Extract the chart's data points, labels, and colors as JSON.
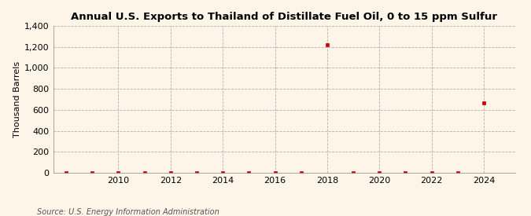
{
  "title": "Annual U.S. Exports to Thailand of Distillate Fuel Oil, 0 to 15 ppm Sulfur",
  "ylabel": "Thousand Barrels",
  "source": "Source: U.S. Energy Information Administration",
  "background_color": "#fdf6e8",
  "years": [
    2008,
    2009,
    2010,
    2011,
    2012,
    2013,
    2014,
    2015,
    2016,
    2017,
    2018,
    2019,
    2020,
    2021,
    2022,
    2023,
    2024
  ],
  "values": [
    0,
    0,
    0,
    0,
    0,
    0,
    0,
    0,
    0,
    0,
    1220,
    0,
    0,
    0,
    0,
    0,
    670
  ],
  "marker_color": "#cc0000",
  "ylim": [
    0,
    1400
  ],
  "yticks": [
    0,
    200,
    400,
    600,
    800,
    1000,
    1200,
    1400
  ],
  "xticks": [
    2010,
    2012,
    2014,
    2016,
    2018,
    2020,
    2022,
    2024
  ],
  "xlim": [
    2007.5,
    2025.2
  ],
  "title_fontsize": 9.5,
  "ylabel_fontsize": 8,
  "tick_fontsize": 8,
  "source_fontsize": 7
}
